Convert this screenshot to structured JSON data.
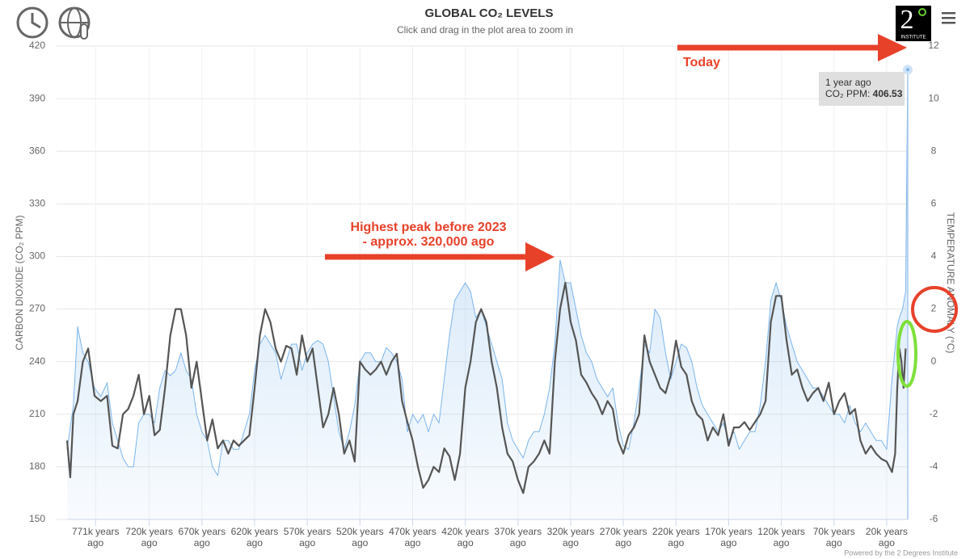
{
  "chart_data": {
    "type": "line",
    "title": "GLOBAL CO₂ LEVELS",
    "subtitle": "Click and drag in the plot area to zoom in",
    "y_label": "CARBON DIOXIDE (CO₂ PPM)",
    "y2_label": "TEMPERATURE ANOMALY (°C)",
    "xlim": [
      798000,
      0
    ],
    "xticks": [
      {
        "value": 771000,
        "label": "771k years ago"
      },
      {
        "value": 720000,
        "label": "720k years ago"
      },
      {
        "value": 670000,
        "label": "670k years ago"
      },
      {
        "value": 620000,
        "label": "620k years ago"
      },
      {
        "value": 570000,
        "label": "570k years ago"
      },
      {
        "value": 520000,
        "label": "520k years ago"
      },
      {
        "value": 470000,
        "label": "470k years ago"
      },
      {
        "value": 420000,
        "label": "420k years ago"
      },
      {
        "value": 370000,
        "label": "370k years ago"
      },
      {
        "value": 320000,
        "label": "320k years ago"
      },
      {
        "value": 270000,
        "label": "270k years ago"
      },
      {
        "value": 220000,
        "label": "220k years ago"
      },
      {
        "value": 170000,
        "label": "170k years ago"
      },
      {
        "value": 120000,
        "label": "120k years ago"
      },
      {
        "value": 70000,
        "label": "70k years ago"
      },
      {
        "value": 20000,
        "label": "20k years ago"
      }
    ],
    "ylim": [
      150,
      420
    ],
    "yticks": [
      150,
      180,
      210,
      240,
      270,
      300,
      330,
      360,
      390,
      420
    ],
    "y2lim": [
      -6,
      12
    ],
    "y2ticks": [
      -6,
      -4,
      -2,
      0,
      2,
      4,
      6,
      8,
      10,
      12
    ],
    "grid": true,
    "series": [
      {
        "color": "#7cb5ec",
        "area": true,
        "x": [
          798000,
          792000,
          788000,
          783000,
          778000,
          772000,
          766000,
          760000,
          755000,
          750000,
          745000,
          740000,
          735000,
          730000,
          725000,
          720000,
          715000,
          710000,
          705000,
          700000,
          695000,
          690000,
          685000,
          680000,
          675000,
          670000,
          665000,
          660000,
          655000,
          650000,
          645000,
          640000,
          635000,
          630000,
          625000,
          620000,
          615000,
          610000,
          605000,
          600000,
          595000,
          590000,
          585000,
          580000,
          575000,
          570000,
          565000,
          560000,
          555000,
          550000,
          545000,
          540000,
          535000,
          530000,
          525000,
          520000,
          515000,
          510000,
          505000,
          500000,
          495000,
          490000,
          485000,
          480000,
          475000,
          470000,
          465000,
          460000,
          455000,
          450000,
          445000,
          440000,
          435000,
          430000,
          425000,
          420000,
          415000,
          410000,
          405000,
          400000,
          395000,
          390000,
          385000,
          380000,
          375000,
          370000,
          365000,
          360000,
          355000,
          350000,
          345000,
          340000,
          335000,
          330000,
          325000,
          320000,
          315000,
          310000,
          305000,
          300000,
          295000,
          290000,
          285000,
          280000,
          275000,
          270000,
          265000,
          260000,
          255000,
          250000,
          245000,
          240000,
          235000,
          230000,
          225000,
          220000,
          215000,
          210000,
          205000,
          200000,
          195000,
          190000,
          185000,
          180000,
          175000,
          170000,
          165000,
          160000,
          155000,
          150000,
          145000,
          140000,
          135000,
          130000,
          125000,
          120000,
          115000,
          110000,
          105000,
          100000,
          95000,
          90000,
          85000,
          80000,
          75000,
          70000,
          65000,
          60000,
          55000,
          50000,
          45000,
          40000,
          35000,
          30000,
          25000,
          20000,
          15000,
          10000,
          8000,
          5000,
          2000,
          1
        ],
        "values": [
          190,
          215,
          260,
          245,
          240,
          225,
          220,
          228,
          205,
          195,
          185,
          180,
          180,
          205,
          210,
          210,
          205,
          225,
          235,
          232,
          235,
          245,
          235,
          230,
          210,
          200,
          195,
          180,
          175,
          195,
          195,
          190,
          190,
          200,
          210,
          235,
          250,
          255,
          250,
          245,
          230,
          240,
          250,
          250,
          235,
          245,
          250,
          252,
          250,
          240,
          220,
          200,
          190,
          200,
          215,
          240,
          245,
          245,
          240,
          240,
          248,
          245,
          240,
          230,
          200,
          210,
          205,
          210,
          200,
          210,
          205,
          230,
          255,
          275,
          280,
          285,
          280,
          265,
          270,
          260,
          250,
          240,
          230,
          205,
          195,
          190,
          185,
          195,
          200,
          200,
          210,
          225,
          250,
          298,
          285,
          285,
          270,
          255,
          245,
          240,
          230,
          225,
          220,
          225,
          205,
          192,
          190,
          205,
          225,
          250,
          245,
          270,
          265,
          245,
          230,
          240,
          250,
          248,
          240,
          225,
          215,
          210,
          205,
          200,
          205,
          195,
          200,
          190,
          195,
          200,
          200,
          215,
          240,
          275,
          285,
          275,
          260,
          250,
          240,
          235,
          230,
          225,
          225,
          220,
          215,
          210,
          210,
          205,
          215,
          205,
          200,
          205,
          200,
          195,
          195,
          190,
          230,
          260,
          265,
          270,
          280,
          406.53
        ]
      },
      {
        "color": "#555555",
        "axis": "y2",
        "x": [
          798000,
          795000,
          792000,
          788000,
          783000,
          778000,
          772000,
          766000,
          760000,
          755000,
          750000,
          745000,
          740000,
          735000,
          730000,
          725000,
          720000,
          715000,
          710000,
          705000,
          700000,
          695000,
          690000,
          685000,
          680000,
          675000,
          670000,
          665000,
          660000,
          655000,
          650000,
          645000,
          640000,
          635000,
          630000,
          625000,
          620000,
          615000,
          610000,
          605000,
          600000,
          595000,
          590000,
          585000,
          580000,
          575000,
          570000,
          565000,
          560000,
          555000,
          550000,
          545000,
          540000,
          535000,
          530000,
          525000,
          520000,
          515000,
          510000,
          505000,
          500000,
          495000,
          490000,
          485000,
          480000,
          475000,
          470000,
          465000,
          460000,
          455000,
          450000,
          445000,
          440000,
          435000,
          430000,
          425000,
          420000,
          415000,
          410000,
          405000,
          400000,
          395000,
          390000,
          385000,
          380000,
          375000,
          370000,
          365000,
          360000,
          355000,
          350000,
          345000,
          340000,
          335000,
          330000,
          325000,
          320000,
          315000,
          310000,
          305000,
          300000,
          295000,
          290000,
          285000,
          280000,
          275000,
          270000,
          265000,
          260000,
          255000,
          250000,
          245000,
          240000,
          235000,
          230000,
          225000,
          220000,
          215000,
          210000,
          205000,
          200000,
          195000,
          190000,
          185000,
          180000,
          175000,
          170000,
          165000,
          160000,
          155000,
          150000,
          145000,
          140000,
          135000,
          130000,
          125000,
          120000,
          115000,
          110000,
          105000,
          100000,
          95000,
          90000,
          85000,
          80000,
          75000,
          70000,
          65000,
          60000,
          55000,
          50000,
          45000,
          40000,
          35000,
          30000,
          25000,
          20000,
          15000,
          12000,
          10000,
          8000,
          6000,
          4000,
          2000
        ],
        "values": [
          -3.0,
          -4.4,
          -2.0,
          -1.5,
          0,
          0.5,
          -1.3,
          -1.5,
          -1.3,
          -3.2,
          -3.3,
          -2.0,
          -1.8,
          -1.3,
          -0.5,
          -2.0,
          -1.3,
          -2.8,
          -2.6,
          -1.0,
          1.0,
          2.0,
          2.0,
          1.0,
          -1.0,
          0,
          -1.5,
          -3.0,
          -2.2,
          -3.3,
          -3.0,
          -3.5,
          -3.0,
          -3.2,
          -3.0,
          -2.8,
          -1.0,
          1.0,
          2.0,
          1.5,
          0.5,
          0,
          0.6,
          0.5,
          -0.5,
          1.0,
          0,
          0.5,
          -1.0,
          -2.5,
          -2.0,
          -1.0,
          -2.0,
          -3.5,
          -3.0,
          -3.8,
          0,
          -0.3,
          -0.5,
          -0.3,
          0,
          -0.5,
          0,
          0.3,
          -1.5,
          -2.3,
          -3.0,
          -4.0,
          -4.8,
          -4.5,
          -4.0,
          -4.2,
          -3.3,
          -3.6,
          -4.5,
          -3.5,
          -1.0,
          0,
          1.5,
          2.0,
          1.5,
          0,
          -1.0,
          -2.5,
          -3.5,
          -3.8,
          -4.5,
          -5.0,
          -4.0,
          -3.8,
          -3.5,
          -3.0,
          -3.5,
          0,
          2.0,
          3.0,
          1.5,
          0.8,
          -0.5,
          -0.8,
          -1.2,
          -1.5,
          -2.0,
          -1.5,
          -1.8,
          -3.0,
          -3.5,
          -2.8,
          -2.5,
          -2.0,
          1.0,
          0,
          -0.5,
          -1.0,
          -1.2,
          -0.5,
          0.8,
          -0.2,
          -0.5,
          -1.5,
          -2.0,
          -2.2,
          -3.0,
          -2.5,
          -2.8,
          -2.0,
          -3.2,
          -2.5,
          -2.5,
          -2.3,
          -2.6,
          -2.3,
          -2.0,
          -1.5,
          1.5,
          2.5,
          2.5,
          0.8,
          -0.5,
          -0.3,
          -1.0,
          -1.5,
          -1.2,
          -1.0,
          -1.5,
          -0.8,
          -2.0,
          -1.5,
          -1.2,
          -2.0,
          -1.8,
          -3.0,
          -3.5,
          -3.2,
          -3.5,
          -3.7,
          -3.8,
          -4.2,
          -3.5,
          -1.0,
          0.5,
          0,
          -1.0,
          0.5
        ]
      }
    ],
    "tooltip": {
      "label": "1 year ago",
      "text": "CO₂ PPM: "
    },
    "annotations": [
      "Today",
      "Highest peak before 2023",
      "- approx. 320,000 ago"
    ],
    "logo": {
      "text": "2",
      "sub": "INSTITUTE"
    },
    "credits": "Powered by the 2 Degrees Institute"
  }
}
